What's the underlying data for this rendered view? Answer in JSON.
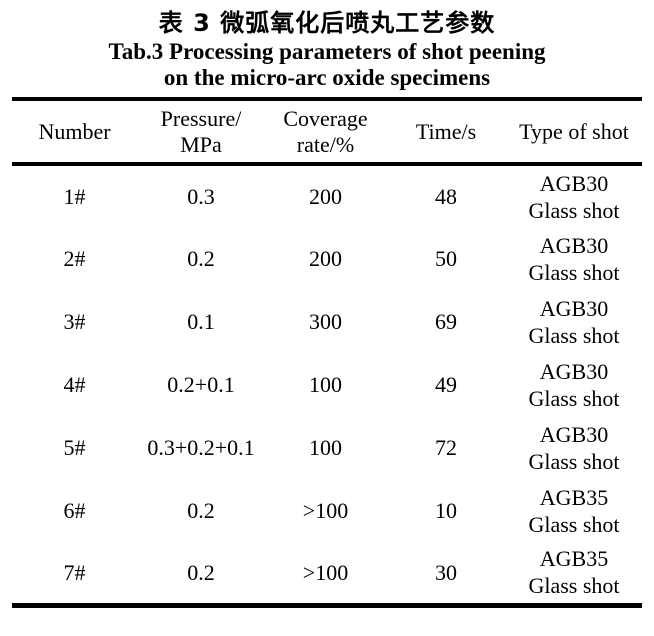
{
  "titles": {
    "chinese": "表 3 微弧氧化后喷丸工艺参数",
    "english_line1": "Tab.3 Processing parameters of shot peening",
    "english_line2": "on the micro-arc oxide specimens"
  },
  "table": {
    "headers": {
      "number": "Number",
      "pressure_line1": "Pressure/",
      "pressure_line2": "MPa",
      "coverage_line1": "Coverage",
      "coverage_line2": "rate/%",
      "time": "Time/s",
      "type": "Type of shot"
    },
    "rows": [
      {
        "number": "1#",
        "pressure": "0.3",
        "coverage": "200",
        "time": "48",
        "shot1": "AGB30",
        "shot2": "Glass shot"
      },
      {
        "number": "2#",
        "pressure": "0.2",
        "coverage": "200",
        "time": "50",
        "shot1": "AGB30",
        "shot2": "Glass shot"
      },
      {
        "number": "3#",
        "pressure": "0.1",
        "coverage": "300",
        "time": "69",
        "shot1": "AGB30",
        "shot2": "Glass shot"
      },
      {
        "number": "4#",
        "pressure": "0.2+0.1",
        "coverage": "100",
        "time": "49",
        "shot1": "AGB30",
        "shot2": "Glass shot"
      },
      {
        "number": "5#",
        "pressure": "0.3+0.2+0.1",
        "coverage": "100",
        "time": "72",
        "shot1": "AGB30",
        "shot2": "Glass shot"
      },
      {
        "number": "6#",
        "pressure": "0.2",
        "coverage": ">100",
        "time": "10",
        "shot1": "AGB35",
        "shot2": "Glass shot"
      },
      {
        "number": "7#",
        "pressure": "0.2",
        "coverage": ">100",
        "time": "30",
        "shot1": "AGB35",
        "shot2": "Glass shot"
      }
    ]
  },
  "colors": {
    "text": "#000000",
    "background": "#ffffff",
    "rule": "#000000"
  }
}
